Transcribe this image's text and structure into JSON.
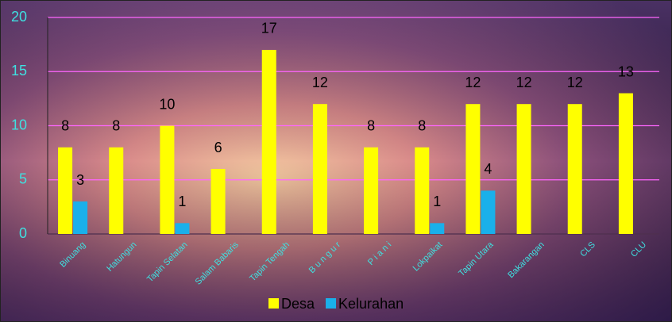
{
  "chart_data": {
    "type": "bar",
    "categories": [
      "Binuang",
      "Hatungun",
      "Tapin Selatan",
      "Salam Babaris",
      "Tapin Tengah",
      "B u n g u r",
      "P i a n i",
      "Lokpaikat",
      "Tapin Utara",
      "Bakarangan",
      "CLS",
      "CLU"
    ],
    "series": [
      {
        "name": "Desa",
        "color": "#ffff00",
        "values": [
          8,
          8,
          10,
          6,
          17,
          12,
          8,
          8,
          12,
          12,
          12,
          13
        ]
      },
      {
        "name": "Kelurahan",
        "color": "#1ab0ea",
        "values": [
          3,
          null,
          1,
          null,
          null,
          null,
          null,
          1,
          4,
          null,
          null,
          null
        ]
      }
    ],
    "ylim": [
      0,
      20
    ],
    "yticks": [
      0,
      5,
      10,
      15,
      20
    ],
    "grid": true,
    "grid_color": "#ff66ff",
    "legend": "bottom"
  }
}
